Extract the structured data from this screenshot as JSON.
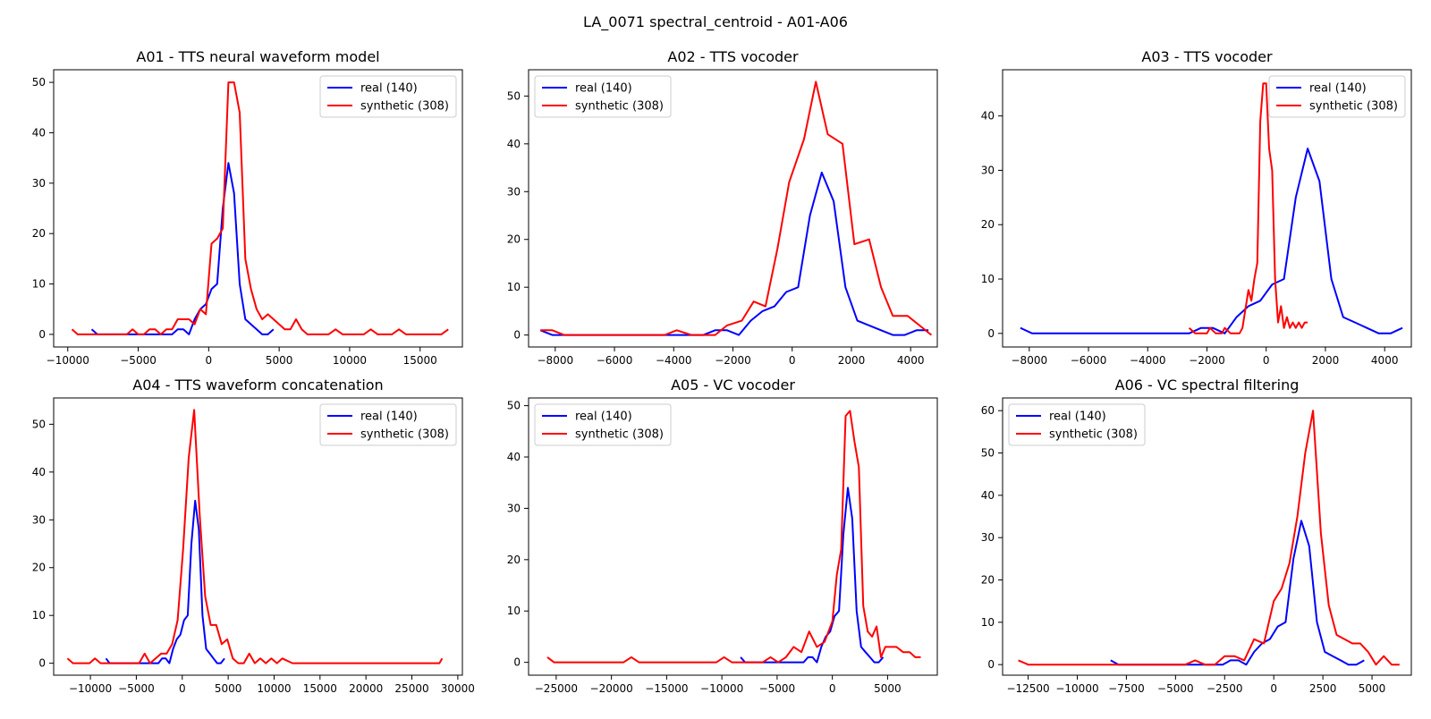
{
  "figure": {
    "title": "LA_0071 spectral_centroid - A01-A06"
  },
  "colors": {
    "real": "#0000ff",
    "synthetic": "#ff0000"
  },
  "chart_data": [
    {
      "type": "line",
      "title": "A01 - TTS neural waveform model",
      "xlim": [
        -11000,
        18000
      ],
      "ylim": [
        -2.5,
        52.5
      ],
      "xticks": [
        -10000,
        -5000,
        0,
        5000,
        10000,
        15000
      ],
      "xtick_labels": [
        "−10000",
        "−5000",
        "0",
        "5000",
        "10000",
        "15000"
      ],
      "yticks": [
        0,
        10,
        20,
        30,
        40,
        50
      ],
      "legend": "top-right",
      "series": [
        {
          "name": "real (140)",
          "color": "#0000ff",
          "x": [
            -8300,
            -7900,
            -3000,
            -2600,
            -2200,
            -1800,
            -1400,
            -1000,
            -600,
            -200,
            200,
            600,
            1000,
            1400,
            1800,
            2200,
            2600,
            3000,
            3400,
            3800,
            4200,
            4600
          ],
          "y": [
            1,
            0,
            0,
            0,
            1,
            1,
            0,
            3,
            5,
            6,
            9,
            10,
            25,
            34,
            28,
            10,
            3,
            2,
            1,
            0,
            0,
            1
          ]
        },
        {
          "name": "synthetic (308)",
          "color": "#ff0000",
          "x": [
            -9700,
            -9300,
            -8800,
            -8300,
            -7800,
            -7300,
            -6800,
            -6300,
            -5800,
            -5400,
            -5000,
            -4600,
            -4200,
            -3800,
            -3400,
            -3000,
            -2600,
            -2200,
            -1800,
            -1400,
            -1000,
            -600,
            -200,
            200,
            600,
            1000,
            1400,
            1800,
            2200,
            2600,
            3000,
            3400,
            3800,
            4200,
            4600,
            5000,
            5400,
            5800,
            6200,
            6600,
            7000,
            7500,
            8000,
            8500,
            9000,
            9500,
            10000,
            10500,
            11000,
            11500,
            12000,
            12500,
            13000,
            13500,
            14000,
            14500,
            15000,
            15500,
            16000,
            16500,
            17000
          ],
          "y": [
            1,
            0,
            0,
            0,
            0,
            0,
            0,
            0,
            0,
            1,
            0,
            0,
            1,
            1,
            0,
            1,
            1,
            3,
            3,
            3,
            2,
            5,
            4,
            18,
            19,
            21,
            50,
            50,
            44,
            15,
            9,
            5,
            3,
            4,
            3,
            2,
            1,
            1,
            3,
            1,
            0,
            0,
            0,
            0,
            1,
            0,
            0,
            0,
            0,
            1,
            0,
            0,
            0,
            1,
            0,
            0,
            0,
            0,
            0,
            0,
            1
          ]
        }
      ]
    },
    {
      "type": "line",
      "title": "A02 - TTS vocoder",
      "xlim": [
        -8900,
        4900
      ],
      "ylim": [
        -2.5,
        55.5
      ],
      "xticks": [
        -8000,
        -6000,
        -4000,
        -2000,
        0,
        2000,
        4000
      ],
      "xtick_labels": [
        "−8000",
        "−6000",
        "−4000",
        "−2000",
        "0",
        "2000",
        "4000"
      ],
      "yticks": [
        0,
        10,
        20,
        30,
        40,
        50
      ],
      "legend": "top-left",
      "series": [
        {
          "name": "real (140)",
          "color": "#0000ff",
          "x": [
            -8500,
            -8100,
            -7800,
            -3000,
            -2600,
            -2200,
            -1800,
            -1400,
            -1000,
            -600,
            -200,
            200,
            600,
            1000,
            1400,
            1800,
            2200,
            2600,
            3000,
            3400,
            3800,
            4200,
            4600
          ],
          "y": [
            1,
            0,
            0,
            0,
            1,
            1,
            0,
            3,
            5,
            6,
            9,
            10,
            25,
            34,
            28,
            10,
            3,
            2,
            1,
            0,
            0,
            1,
            1
          ]
        },
        {
          "name": "synthetic (308)",
          "color": "#ff0000",
          "x": [
            -8500,
            -8100,
            -7700,
            -4800,
            -4300,
            -3900,
            -3400,
            -3000,
            -2600,
            -2200,
            -1700,
            -1300,
            -900,
            -500,
            -100,
            400,
            800,
            1200,
            1700,
            2100,
            2600,
            3000,
            3400,
            3900,
            4300,
            4700
          ],
          "y": [
            1,
            1,
            0,
            0,
            0,
            1,
            0,
            0,
            0,
            2,
            3,
            7,
            6,
            18,
            32,
            41,
            53,
            42,
            40,
            19,
            20,
            10,
            4,
            4,
            2,
            0
          ]
        }
      ]
    },
    {
      "type": "line",
      "title": "A03 - TTS vocoder",
      "xlim": [
        -8900,
        4900
      ],
      "ylim": [
        -2.5,
        48.5
      ],
      "xticks": [
        -8000,
        -6000,
        -4000,
        -2000,
        0,
        2000,
        4000
      ],
      "xtick_labels": [
        "−8000",
        "−6000",
        "−4000",
        "−2000",
        "0",
        "2000",
        "4000"
      ],
      "yticks": [
        0,
        10,
        20,
        30,
        40
      ],
      "legend": "top-right",
      "series": [
        {
          "name": "real (140)",
          "color": "#0000ff",
          "x": [
            -8300,
            -7900,
            -3000,
            -2600,
            -2200,
            -1800,
            -1400,
            -1000,
            -600,
            -200,
            200,
            600,
            1000,
            1400,
            1800,
            2200,
            2600,
            3000,
            3400,
            3800,
            4200,
            4600
          ],
          "y": [
            1,
            0,
            0,
            0,
            1,
            1,
            0,
            3,
            5,
            6,
            9,
            10,
            25,
            34,
            28,
            10,
            3,
            2,
            1,
            0,
            0,
            1
          ]
        },
        {
          "name": "synthetic (308)",
          "color": "#ff0000",
          "x": [
            -2600,
            -2400,
            -2200,
            -2000,
            -1900,
            -1700,
            -1500,
            -1400,
            -1200,
            -1000,
            -900,
            -800,
            -600,
            -500,
            -400,
            -300,
            -200,
            -100,
            0,
            100,
            200,
            300,
            400,
            500,
            600,
            700,
            800,
            900,
            1000,
            1100,
            1200,
            1300,
            1400
          ],
          "y": [
            1,
            0,
            0,
            0,
            1,
            0,
            0,
            1,
            0,
            0,
            0,
            1,
            8,
            6,
            10,
            13,
            39,
            46,
            46,
            34,
            30,
            10,
            2,
            5,
            1,
            3,
            1,
            2,
            1,
            2,
            1,
            2,
            2
          ]
        }
      ]
    },
    {
      "type": "line",
      "title": "A04 - TTS waveform concatenation",
      "xlim": [
        -14000,
        30500
      ],
      "ylim": [
        -2.5,
        55.5
      ],
      "xticks": [
        -10000,
        -5000,
        0,
        5000,
        10000,
        15000,
        20000,
        25000,
        30000
      ],
      "xtick_labels": [
        "−10000",
        "−5000",
        "0",
        "5000",
        "10000",
        "15000",
        "20000",
        "25000",
        "30000"
      ],
      "yticks": [
        0,
        10,
        20,
        30,
        40,
        50
      ],
      "legend": "top-right",
      "series": [
        {
          "name": "real (140)",
          "color": "#0000ff",
          "x": [
            -8300,
            -7900,
            -3000,
            -2600,
            -2200,
            -1800,
            -1400,
            -1000,
            -600,
            -200,
            200,
            600,
            1000,
            1400,
            1800,
            2200,
            2600,
            3000,
            3400,
            3800,
            4200,
            4600
          ],
          "y": [
            1,
            0,
            0,
            0,
            1,
            1,
            0,
            3,
            5,
            6,
            9,
            10,
            25,
            34,
            28,
            10,
            3,
            2,
            1,
            0,
            0,
            1
          ]
        },
        {
          "name": "synthetic (308)",
          "color": "#ff0000",
          "x": [
            -12500,
            -11900,
            -11300,
            -10700,
            -10100,
            -9500,
            -8900,
            -8300,
            -7700,
            -7100,
            -6500,
            -5900,
            -5300,
            -4700,
            -4100,
            -3500,
            -2900,
            -2300,
            -1700,
            -1100,
            -500,
            100,
            700,
            1300,
            1900,
            2500,
            3100,
            3700,
            4300,
            4900,
            5500,
            6100,
            6700,
            7300,
            7900,
            8500,
            9100,
            9700,
            10300,
            10900,
            12000,
            15000,
            20000,
            25000,
            28000,
            28300
          ],
          "y": [
            1,
            0,
            0,
            0,
            0,
            1,
            0,
            0,
            0,
            0,
            0,
            0,
            0,
            0,
            2,
            0,
            1,
            2,
            2,
            4,
            9,
            24,
            43,
            53,
            31,
            14,
            8,
            8,
            4,
            5,
            1,
            0,
            0,
            2,
            0,
            1,
            0,
            1,
            0,
            1,
            0,
            0,
            0,
            0,
            0,
            1
          ]
        }
      ]
    },
    {
      "type": "line",
      "title": "A05 - VC vocoder",
      "xlim": [
        -27500,
        9500
      ],
      "ylim": [
        -2.5,
        51.5
      ],
      "xticks": [
        -25000,
        -20000,
        -15000,
        -10000,
        -5000,
        0,
        5000
      ],
      "xtick_labels": [
        "−25000",
        "−20000",
        "−15000",
        "−10000",
        "−5000",
        "0",
        "5000"
      ],
      "yticks": [
        0,
        10,
        20,
        30,
        40,
        50
      ],
      "legend": "top-left",
      "series": [
        {
          "name": "real (140)",
          "color": "#0000ff",
          "x": [
            -8300,
            -7900,
            -3000,
            -2600,
            -2200,
            -1800,
            -1400,
            -1000,
            -600,
            -200,
            200,
            600,
            1000,
            1400,
            1800,
            2200,
            2600,
            3000,
            3400,
            3800,
            4200,
            4600
          ],
          "y": [
            1,
            0,
            0,
            0,
            1,
            1,
            0,
            3,
            5,
            6,
            9,
            10,
            25,
            34,
            28,
            10,
            3,
            2,
            1,
            0,
            0,
            1
          ]
        },
        {
          "name": "synthetic (308)",
          "color": "#ff0000",
          "x": [
            -25800,
            -25200,
            -24500,
            -23800,
            -23100,
            -22400,
            -21700,
            -21000,
            -20300,
            -19600,
            -18900,
            -18200,
            -17500,
            -16800,
            -16100,
            -15400,
            -14700,
            -14000,
            -13300,
            -12600,
            -11900,
            -11200,
            -10500,
            -9800,
            -9100,
            -8400,
            -7700,
            -7000,
            -6300,
            -5600,
            -4900,
            -4200,
            -3500,
            -2800,
            -2100,
            -1400,
            -700,
            0,
            400,
            800,
            1200,
            1600,
            2000,
            2400,
            2800,
            3200,
            3600,
            4000,
            4400,
            4800,
            5200,
            5800,
            6400,
            7000,
            7500,
            8000
          ],
          "y": [
            1,
            0,
            0,
            0,
            0,
            0,
            0,
            0,
            0,
            0,
            0,
            1,
            0,
            0,
            0,
            0,
            0,
            0,
            0,
            0,
            0,
            0,
            0,
            1,
            0,
            0,
            0,
            0,
            0,
            1,
            0,
            1,
            3,
            2,
            6,
            3,
            4,
            8,
            17,
            22,
            48,
            49,
            43,
            38,
            11,
            6,
            5,
            7,
            1,
            3,
            3,
            3,
            2,
            2,
            1,
            1
          ]
        }
      ]
    },
    {
      "type": "line",
      "title": "A06 - VC spectral filtering",
      "xlim": [
        -13800,
        7000
      ],
      "ylim": [
        -2.5,
        63
      ],
      "xticks": [
        -12500,
        -10000,
        -7500,
        -5000,
        -2500,
        0,
        2500,
        5000
      ],
      "xtick_labels": [
        "−12500",
        "−10000",
        "−7500",
        "−5000",
        "−2500",
        "0",
        "2500",
        "5000"
      ],
      "yticks": [
        0,
        10,
        20,
        30,
        40,
        50,
        60
      ],
      "legend": "top-left",
      "series": [
        {
          "name": "real (140)",
          "color": "#0000ff",
          "x": [
            -8300,
            -7900,
            -3000,
            -2600,
            -2200,
            -1800,
            -1400,
            -1000,
            -600,
            -200,
            200,
            600,
            1000,
            1400,
            1800,
            2200,
            2600,
            3000,
            3400,
            3800,
            4200,
            4600
          ],
          "y": [
            1,
            0,
            0,
            0,
            1,
            1,
            0,
            3,
            5,
            6,
            9,
            10,
            25,
            34,
            28,
            10,
            3,
            2,
            1,
            0,
            0,
            1
          ]
        },
        {
          "name": "synthetic (308)",
          "color": "#ff0000",
          "x": [
            -13000,
            -12500,
            -12000,
            -11500,
            -11000,
            -10500,
            -10000,
            -9500,
            -9000,
            -8500,
            -8000,
            -7500,
            -7000,
            -6500,
            -6000,
            -5500,
            -5000,
            -4500,
            -4000,
            -3500,
            -3000,
            -2500,
            -2000,
            -1500,
            -1000,
            -500,
            0,
            400,
            800,
            1200,
            1600,
            2000,
            2400,
            2800,
            3200,
            3600,
            4000,
            4400,
            4800,
            5200,
            5600,
            6000,
            6400
          ],
          "y": [
            1,
            0,
            0,
            0,
            0,
            0,
            0,
            0,
            0,
            0,
            0,
            0,
            0,
            0,
            0,
            0,
            0,
            0,
            1,
            0,
            0,
            2,
            2,
            1,
            6,
            5,
            15,
            18,
            24,
            35,
            50,
            60,
            31,
            14,
            7,
            6,
            5,
            5,
            3,
            0,
            2,
            0,
            0
          ]
        }
      ]
    }
  ]
}
